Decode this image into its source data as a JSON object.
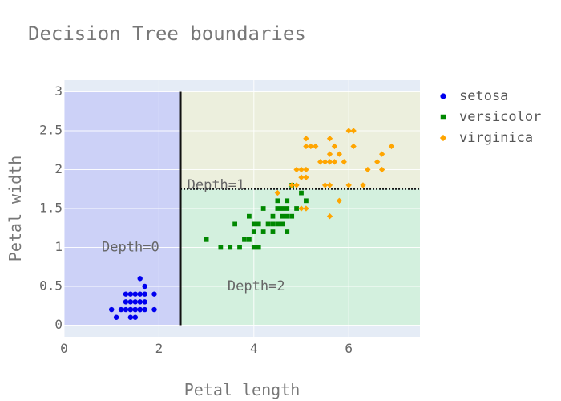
{
  "chart_data": {
    "type": "scatter",
    "title": "Decision Tree boundaries",
    "xlabel": "Petal length",
    "ylabel": "Petal width",
    "xlim": [
      0,
      7.5
    ],
    "ylim": [
      -0.15,
      3.15
    ],
    "xticks": [
      0,
      2,
      4,
      6
    ],
    "xtick_labels": [
      "0",
      "2",
      "4",
      "6"
    ],
    "yticks": [
      0,
      0.5,
      1,
      1.5,
      2,
      2.5,
      3
    ],
    "ytick_labels": [
      "0",
      "0.5",
      "1",
      "1.5",
      "2",
      "2.5",
      "3"
    ],
    "grid": true,
    "legend_position": "top-right",
    "regions": [
      {
        "x": [
          0,
          2.45
        ],
        "y": [
          0,
          3
        ],
        "color": "#ccd1f7"
      },
      {
        "x": [
          2.45,
          7.5
        ],
        "y": [
          1.75,
          3
        ],
        "color": "#ecefdd"
      },
      {
        "x": [
          2.45,
          7.5
        ],
        "y": [
          0,
          1.75
        ],
        "color": "#d3f0de"
      }
    ],
    "boundaries": [
      {
        "x": [
          2.45,
          2.45
        ],
        "y": [
          0,
          3
        ],
        "style": "solid"
      },
      {
        "x": [
          2.45,
          7.5
        ],
        "y": [
          1.75,
          1.75
        ],
        "style": "dotted"
      }
    ],
    "annotations": [
      {
        "text": "Depth=0",
        "x": 1.4,
        "y": 1.0
      },
      {
        "text": "Depth=1",
        "x": 3.2,
        "y": 1.8
      },
      {
        "text": "Depth=2",
        "x": 4.05,
        "y": 0.5
      }
    ],
    "series": [
      {
        "name": "setosa",
        "color": "#0000ee",
        "marker": "circle",
        "x": [
          1.0,
          1.1,
          1.2,
          1.3,
          1.3,
          1.3,
          1.4,
          1.4,
          1.4,
          1.4,
          1.4,
          1.5,
          1.5,
          1.5,
          1.5,
          1.5,
          1.6,
          1.6,
          1.6,
          1.6,
          1.6,
          1.7,
          1.7,
          1.7,
          1.7,
          1.9,
          1.9
        ],
        "y": [
          0.2,
          0.1,
          0.2,
          0.2,
          0.3,
          0.4,
          0.1,
          0.2,
          0.3,
          0.4,
          0.2,
          0.1,
          0.2,
          0.3,
          0.4,
          0.2,
          0.2,
          0.4,
          0.6,
          0.2,
          0.3,
          0.2,
          0.3,
          0.4,
          0.5,
          0.2,
          0.4
        ]
      },
      {
        "name": "versicolor",
        "color": "#008800",
        "marker": "square",
        "x": [
          3.0,
          3.3,
          3.5,
          3.6,
          3.7,
          3.8,
          3.9,
          3.9,
          4.0,
          4.0,
          4.0,
          4.1,
          4.1,
          4.2,
          4.2,
          4.3,
          4.4,
          4.4,
          4.4,
          4.5,
          4.5,
          4.5,
          4.6,
          4.6,
          4.6,
          4.7,
          4.7,
          4.7,
          4.7,
          4.8,
          4.8,
          4.9,
          5.0,
          5.1
        ],
        "y": [
          1.1,
          1.0,
          1.0,
          1.3,
          1.0,
          1.1,
          1.1,
          1.4,
          1.0,
          1.2,
          1.3,
          1.0,
          1.3,
          1.2,
          1.5,
          1.3,
          1.2,
          1.4,
          1.3,
          1.5,
          1.6,
          1.3,
          1.4,
          1.5,
          1.3,
          1.4,
          1.6,
          1.2,
          1.5,
          1.8,
          1.4,
          1.5,
          1.7,
          1.6
        ]
      },
      {
        "name": "virginica",
        "color": "#ffa500",
        "marker": "diamond",
        "x": [
          4.5,
          4.8,
          4.9,
          4.9,
          5.0,
          5.0,
          5.0,
          5.1,
          5.1,
          5.1,
          5.1,
          5.1,
          5.2,
          5.3,
          5.4,
          5.5,
          5.5,
          5.6,
          5.6,
          5.6,
          5.6,
          5.7,
          5.7,
          5.8,
          5.8,
          5.9,
          6.0,
          6.0,
          6.1,
          6.1,
          6.3,
          6.4,
          6.6,
          6.7,
          6.7,
          6.9,
          5.6
        ],
        "y": [
          1.7,
          1.8,
          2.0,
          1.8,
          2.0,
          1.9,
          1.5,
          2.4,
          2.3,
          2.0,
          1.9,
          1.5,
          2.3,
          2.3,
          2.1,
          2.1,
          1.8,
          2.4,
          2.1,
          2.2,
          1.4,
          2.3,
          2.1,
          2.2,
          1.6,
          2.1,
          2.5,
          1.8,
          2.5,
          2.3,
          1.8,
          2.0,
          2.1,
          2.2,
          2.0,
          2.3,
          1.8
        ]
      }
    ]
  }
}
